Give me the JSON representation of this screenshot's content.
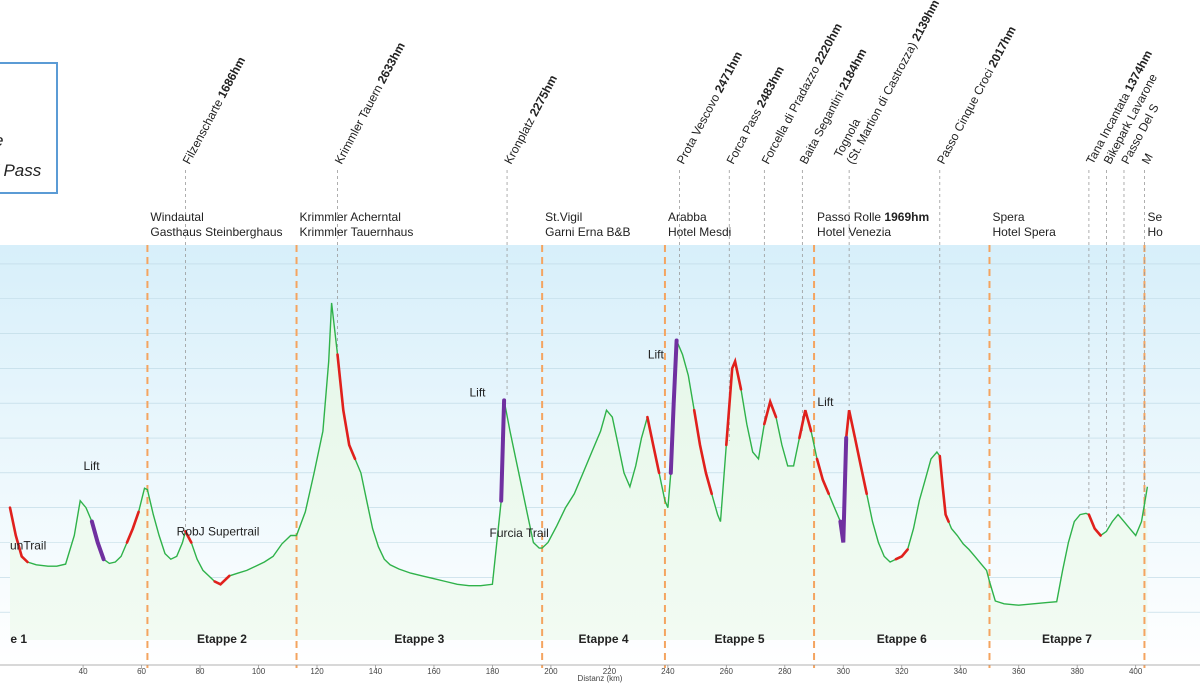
{
  "legend": {
    "line1": "e",
    "line2": "/ Pass"
  },
  "chart_data": {
    "type": "area",
    "xlabel": "Distanz (km)",
    "ylabel": "",
    "xlim": [
      15,
      422
    ],
    "ylim": [
      300,
      3100
    ],
    "x_ticks": [
      40,
      60,
      80,
      100,
      120,
      140,
      160,
      180,
      200,
      220,
      240,
      260,
      280,
      300,
      320,
      340,
      360,
      380,
      400
    ],
    "grid": true,
    "colors": {
      "profile": "#2fb24a",
      "steep": "#e0201c",
      "lift": "#7030a0",
      "stage": "#f4a460",
      "fill_top": "#d7effa",
      "fill_bottom": "#ffffff"
    },
    "stage_boundaries": [
      62,
      113,
      197,
      239,
      290,
      350,
      403
    ],
    "stages": [
      {
        "label": "e 1",
        "x": 18
      },
      {
        "label": "Etappe 2",
        "x": 87.5
      },
      {
        "label": "Etappe 3",
        "x": 155
      },
      {
        "label": "Etappe 4",
        "x": 218
      },
      {
        "label": "Etappe 5",
        "x": 264.5
      },
      {
        "label": "Etappe 6",
        "x": 320
      },
      {
        "label": "Etappe 7",
        "x": 376.5
      }
    ],
    "accommodations": [
      {
        "line1": "Windautal",
        "line2": "Gasthaus Steinberghaus",
        "x": 62
      },
      {
        "line1": "Krimmler Acherntal",
        "line2": "Krimmler Tauernhaus",
        "x": 113
      },
      {
        "line1": "St.Vigil",
        "line2": "Garni Erna B&B",
        "x": 197
      },
      {
        "line1": "Arabba",
        "line2": "Hotel Mesdi",
        "x": 239
      },
      {
        "line1": "Passo Rolle ",
        "bold": "1969hm",
        "line2": "Hotel Venezia",
        "x": 290
      },
      {
        "line1": "Spera",
        "line2": "Hotel Spera",
        "x": 350
      },
      {
        "line1": "Se",
        "line2": "Ho",
        "x": 403
      }
    ],
    "passes": [
      {
        "name": "Filzenscharte ",
        "hm": "1686hm",
        "x": 75
      },
      {
        "name": "Krimmler Tauern ",
        "hm": "2633hm",
        "x": 127
      },
      {
        "name": "Kronplatz ",
        "hm": "2275hm",
        "x": 185
      },
      {
        "name": "Prota Vescovo ",
        "hm": "2471hm",
        "x": 244
      },
      {
        "name": "Forca Pass ",
        "hm": "2483hm",
        "x": 261
      },
      {
        "name": "Forcella di Pradazzo ",
        "hm": "2220hm",
        "x": 273
      },
      {
        "name": "Baita Segantini ",
        "hm": "2184hm",
        "x": 286
      },
      {
        "name": "Tognola",
        "name2": "(St. Martion di Castrozza) ",
        "hm": "2139hm",
        "x": 302
      },
      {
        "name": "Passo Cinque Croci ",
        "hm": "2017hm",
        "x": 333
      },
      {
        "name": "Tana Incantata ",
        "hm": "1374hm",
        "x": 384
      },
      {
        "name": "Bikepark Lavarone",
        "hm": "",
        "x": 390
      },
      {
        "name": "Passo Del S",
        "hm": "",
        "x": 396
      },
      {
        "name": "M",
        "hm": "",
        "x": 403
      }
    ],
    "lifts": [
      {
        "label": "Lift",
        "x": 47,
        "y": 1520
      },
      {
        "label": "Lift",
        "x": 179,
        "y": 2050
      },
      {
        "label": "Lift",
        "x": 240,
        "y": 2320
      },
      {
        "label": "Lift",
        "x": 298,
        "y": 1980
      }
    ],
    "trails": [
      {
        "label": "unTrail",
        "x": 15,
        "y": 950
      },
      {
        "label": "RobJ Supertrail",
        "x": 72,
        "y": 1050
      },
      {
        "label": "Furcia Trail",
        "x": 179,
        "y": 1040
      }
    ],
    "profile": [
      [
        15,
        1250
      ],
      [
        17,
        1050
      ],
      [
        19,
        900
      ],
      [
        21,
        860
      ],
      [
        24,
        840
      ],
      [
        28,
        830
      ],
      [
        31,
        830
      ],
      [
        34,
        845
      ],
      [
        37,
        1050
      ],
      [
        39,
        1300
      ],
      [
        41,
        1250
      ],
      [
        43,
        1150
      ],
      [
        45,
        1000
      ],
      [
        47,
        880
      ],
      [
        49,
        850
      ],
      [
        51,
        860
      ],
      [
        53,
        900
      ],
      [
        55,
        1000
      ],
      [
        57,
        1100
      ],
      [
        59,
        1220
      ],
      [
        61,
        1390
      ],
      [
        62,
        1380
      ],
      [
        64,
        1200
      ],
      [
        66,
        1050
      ],
      [
        68,
        920
      ],
      [
        70,
        880
      ],
      [
        72,
        900
      ],
      [
        74,
        1000
      ],
      [
        75,
        1080
      ],
      [
        77,
        1000
      ],
      [
        79,
        880
      ],
      [
        81,
        800
      ],
      [
        83,
        760
      ],
      [
        85,
        720
      ],
      [
        87,
        700
      ],
      [
        90,
        760
      ],
      [
        93,
        780
      ],
      [
        96,
        800
      ],
      [
        99,
        830
      ],
      [
        102,
        860
      ],
      [
        105,
        900
      ],
      [
        108,
        990
      ],
      [
        111,
        1050
      ],
      [
        113,
        1050
      ],
      [
        116,
        1220
      ],
      [
        119,
        1500
      ],
      [
        122,
        1800
      ],
      [
        124,
        2300
      ],
      [
        125,
        2720
      ],
      [
        127,
        2350
      ],
      [
        129,
        1950
      ],
      [
        131,
        1700
      ],
      [
        133,
        1600
      ],
      [
        135,
        1500
      ],
      [
        137,
        1300
      ],
      [
        139,
        1100
      ],
      [
        141,
        970
      ],
      [
        143,
        880
      ],
      [
        145,
        840
      ],
      [
        148,
        810
      ],
      [
        152,
        780
      ],
      [
        156,
        760
      ],
      [
        160,
        740
      ],
      [
        164,
        720
      ],
      [
        168,
        700
      ],
      [
        172,
        690
      ],
      [
        176,
        690
      ],
      [
        180,
        700
      ],
      [
        183,
        1300
      ],
      [
        184,
        2020
      ],
      [
        186,
        1800
      ],
      [
        188,
        1600
      ],
      [
        190,
        1400
      ],
      [
        192,
        1200
      ],
      [
        194,
        1000
      ],
      [
        196,
        960
      ],
      [
        197,
        960
      ],
      [
        199,
        1000
      ],
      [
        202,
        1120
      ],
      [
        205,
        1250
      ],
      [
        208,
        1350
      ],
      [
        211,
        1500
      ],
      [
        214,
        1650
      ],
      [
        217,
        1800
      ],
      [
        219,
        1950
      ],
      [
        221,
        1900
      ],
      [
        223,
        1700
      ],
      [
        225,
        1500
      ],
      [
        227,
        1400
      ],
      [
        229,
        1550
      ],
      [
        231,
        1750
      ],
      [
        233,
        1900
      ],
      [
        235,
        1700
      ],
      [
        237,
        1500
      ],
      [
        239,
        1300
      ],
      [
        240,
        1250
      ],
      [
        241,
        1500
      ],
      [
        242,
        2000
      ],
      [
        243,
        2450
      ],
      [
        245,
        2350
      ],
      [
        247,
        2200
      ],
      [
        249,
        1950
      ],
      [
        251,
        1700
      ],
      [
        253,
        1500
      ],
      [
        255,
        1350
      ],
      [
        257,
        1200
      ],
      [
        258,
        1150
      ],
      [
        260,
        1700
      ],
      [
        262,
        2250
      ],
      [
        263,
        2300
      ],
      [
        265,
        2100
      ],
      [
        267,
        1850
      ],
      [
        269,
        1650
      ],
      [
        271,
        1600
      ],
      [
        273,
        1850
      ],
      [
        275,
        2010
      ],
      [
        277,
        1900
      ],
      [
        279,
        1700
      ],
      [
        281,
        1550
      ],
      [
        283,
        1550
      ],
      [
        285,
        1750
      ],
      [
        287,
        1950
      ],
      [
        289,
        1800
      ],
      [
        291,
        1600
      ],
      [
        293,
        1450
      ],
      [
        295,
        1350
      ],
      [
        297,
        1250
      ],
      [
        299,
        1150
      ],
      [
        300,
        1000
      ],
      [
        301,
        1750
      ],
      [
        302,
        1950
      ],
      [
        304,
        1750
      ],
      [
        306,
        1550
      ],
      [
        308,
        1350
      ],
      [
        310,
        1150
      ],
      [
        312,
        1000
      ],
      [
        314,
        900
      ],
      [
        316,
        860
      ],
      [
        318,
        880
      ],
      [
        320,
        900
      ],
      [
        322,
        950
      ],
      [
        324,
        1100
      ],
      [
        326,
        1300
      ],
      [
        328,
        1450
      ],
      [
        330,
        1600
      ],
      [
        332,
        1650
      ],
      [
        333,
        1620
      ],
      [
        334,
        1400
      ],
      [
        335,
        1200
      ],
      [
        336,
        1150
      ],
      [
        337,
        1100
      ],
      [
        339,
        1050
      ],
      [
        341,
        990
      ],
      [
        343,
        950
      ],
      [
        345,
        900
      ],
      [
        347,
        850
      ],
      [
        349,
        800
      ],
      [
        350,
        720
      ],
      [
        352,
        580
      ],
      [
        355,
        560
      ],
      [
        360,
        550
      ],
      [
        365,
        560
      ],
      [
        370,
        570
      ],
      [
        373,
        575
      ],
      [
        375,
        800
      ],
      [
        377,
        1000
      ],
      [
        379,
        1150
      ],
      [
        381,
        1200
      ],
      [
        383,
        1210
      ],
      [
        384,
        1200
      ],
      [
        386,
        1100
      ],
      [
        388,
        1050
      ],
      [
        390,
        1080
      ],
      [
        392,
        1150
      ],
      [
        394,
        1200
      ],
      [
        396,
        1150
      ],
      [
        398,
        1100
      ],
      [
        400,
        1050
      ],
      [
        402,
        1150
      ],
      [
        404,
        1400
      ]
    ],
    "steep_segments": [
      [
        15,
        21
      ],
      [
        55,
        59
      ],
      [
        75,
        77
      ],
      [
        85,
        90
      ],
      [
        127,
        133
      ],
      [
        233,
        237
      ],
      [
        249,
        255
      ],
      [
        260,
        265
      ],
      [
        273,
        277
      ],
      [
        285,
        289
      ],
      [
        291,
        295
      ],
      [
        301,
        308
      ],
      [
        318,
        322
      ],
      [
        333,
        336
      ],
      [
        384,
        388
      ]
    ],
    "lift_segments": [
      [
        43,
        47
      ],
      [
        182,
        184
      ],
      [
        241,
        243
      ],
      [
        299,
        301
      ]
    ]
  }
}
